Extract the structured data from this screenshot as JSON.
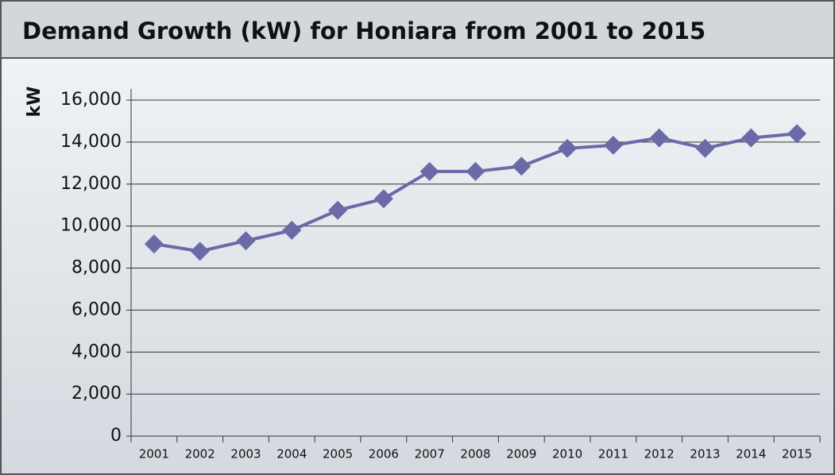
{
  "chart_data": {
    "type": "line",
    "title": "Demand Growth (kW) for Honiara from 2001 to 2015",
    "y_label": "kW",
    "categories": [
      "2001",
      "2002",
      "2003",
      "2004",
      "2005",
      "2006",
      "2007",
      "2008",
      "2009",
      "2010",
      "2011",
      "2012",
      "2013",
      "2014",
      "2015"
    ],
    "series": [
      {
        "name": "Demand",
        "color": "#6a6aa8",
        "values": [
          9150,
          8800,
          9300,
          9800,
          10750,
          11300,
          12600,
          12600,
          12850,
          13700,
          13850,
          14200,
          13700,
          14200,
          14400
        ]
      }
    ],
    "ylim": [
      0,
      16000
    ],
    "yticks": [
      0,
      {
        "value": 2000,
        "label": "2,000"
      },
      {
        "value": 4000,
        "label": "4,000"
      },
      {
        "value": 6000,
        "label": "6,000"
      },
      {
        "value": 8000,
        "label": "8,000"
      },
      {
        "value": 10000,
        "label": "10,000"
      },
      {
        "value": 12000,
        "label": "12,000"
      },
      {
        "value": 14000,
        "label": "14,000"
      },
      {
        "value": 16000,
        "label": "16,000"
      }
    ],
    "grid": true
  }
}
